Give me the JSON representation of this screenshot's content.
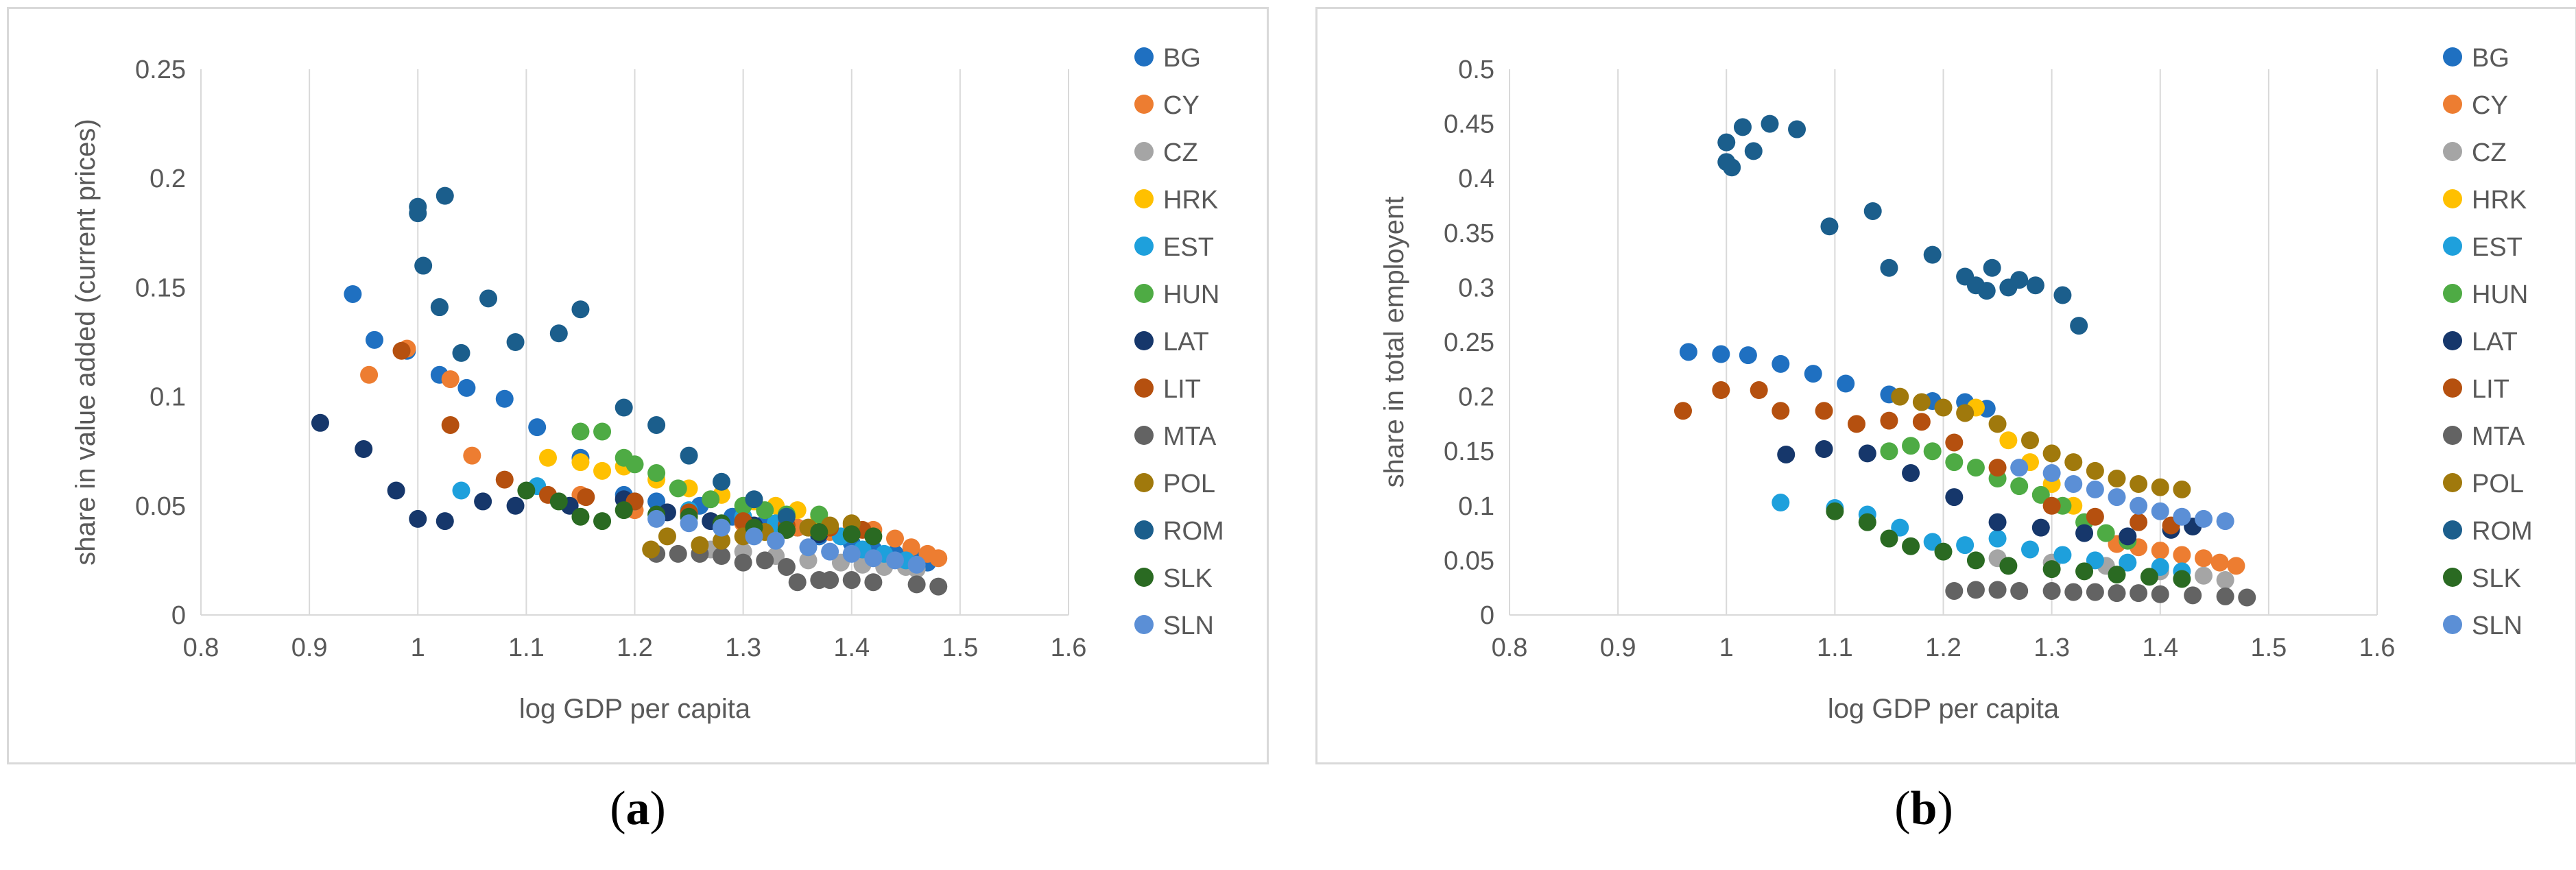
{
  "captions": {
    "a_open": "(",
    "a_letter": "a",
    "a_close": ")",
    "b_open": "(",
    "b_letter": "b",
    "b_close": ")"
  },
  "legend": [
    {
      "name": "BG",
      "color": "#1f70c1"
    },
    {
      "name": "CY",
      "color": "#ed7d31"
    },
    {
      "name": "CZ",
      "color": "#a5a5a5"
    },
    {
      "name": "HRK",
      "color": "#ffc000"
    },
    {
      "name": "EST",
      "color": "#1ea0dc"
    },
    {
      "name": "HUN",
      "color": "#4eab44"
    },
    {
      "name": "LAT",
      "color": "#16376b"
    },
    {
      "name": "LIT",
      "color": "#b5500f"
    },
    {
      "name": "MTA",
      "color": "#636363"
    },
    {
      "name": "POL",
      "color": "#a0790c"
    },
    {
      "name": "ROM",
      "color": "#1b5e8c"
    },
    {
      "name": "SLK",
      "color": "#2a6a22"
    },
    {
      "name": "SLN",
      "color": "#5b8fd6"
    }
  ],
  "chart_data": [
    {
      "id": "a",
      "type": "scatter",
      "xlabel": "log GDP per capita",
      "ylabel": "share in value added (current prices)",
      "xlim": [
        0.8,
        1.6
      ],
      "ylim": [
        0,
        0.25
      ],
      "xticks": [
        "0.8",
        "0.9",
        "1",
        "1.1",
        "1.2",
        "1.3",
        "1.4",
        "1.5",
        "1.6"
      ],
      "yticks": [
        "0",
        "0.05",
        "0.1",
        "0.15",
        "0.2",
        "0.25"
      ],
      "grid": "vertical",
      "legend_position": "right",
      "series": [
        {
          "name": "BG",
          "x": [
            0.94,
            0.96,
            0.99,
            1.02,
            1.045,
            1.08,
            1.11,
            1.15,
            1.19,
            1.22,
            1.26,
            1.29,
            1.32,
            1.35,
            1.37,
            1.4,
            1.42,
            1.44,
            1.46,
            1.47
          ],
          "y": [
            0.147,
            0.126,
            0.121,
            0.11,
            0.104,
            0.099,
            0.086,
            0.072,
            0.055,
            0.052,
            0.05,
            0.045,
            0.042,
            0.04,
            0.036,
            0.033,
            0.03,
            0.028,
            0.026,
            0.024
          ]
        },
        {
          "name": "CY",
          "x": [
            0.955,
            0.99,
            1.03,
            1.05,
            1.15,
            1.2,
            1.25,
            1.3,
            1.35,
            1.38,
            1.4,
            1.42,
            1.44,
            1.455,
            1.47,
            1.48
          ],
          "y": [
            0.11,
            0.122,
            0.108,
            0.073,
            0.055,
            0.048,
            0.046,
            0.042,
            0.04,
            0.038,
            0.041,
            0.039,
            0.035,
            0.031,
            0.028,
            0.026
          ]
        },
        {
          "name": "CZ",
          "x": [
            1.27,
            1.3,
            1.33,
            1.36,
            1.39,
            1.41,
            1.43,
            1.45,
            1.46
          ],
          "y": [
            0.03,
            0.029,
            0.027,
            0.025,
            0.024,
            0.023,
            0.022,
            0.022,
            0.021
          ]
        },
        {
          "name": "HRK",
          "x": [
            1.12,
            1.15,
            1.17,
            1.19,
            1.22,
            1.25,
            1.28,
            1.31,
            1.33,
            1.35,
            1.37
          ],
          "y": [
            0.072,
            0.07,
            0.066,
            0.068,
            0.062,
            0.058,
            0.055,
            0.052,
            0.05,
            0.048,
            0.045
          ]
        },
        {
          "name": "EST",
          "x": [
            1.04,
            1.11,
            1.2,
            1.25,
            1.3,
            1.33,
            1.36,
            1.39,
            1.41,
            1.43,
            1.45
          ],
          "y": [
            0.057,
            0.059,
            0.052,
            0.048,
            0.045,
            0.042,
            0.04,
            0.036,
            0.03,
            0.028,
            0.025
          ]
        },
        {
          "name": "HUN",
          "x": [
            1.15,
            1.17,
            1.19,
            1.2,
            1.22,
            1.24,
            1.27,
            1.3,
            1.32,
            1.34,
            1.37
          ],
          "y": [
            0.084,
            0.084,
            0.072,
            0.069,
            0.065,
            0.058,
            0.053,
            0.05,
            0.048,
            0.046,
            0.046
          ]
        },
        {
          "name": "LAT",
          "x": [
            0.91,
            0.95,
            0.98,
            1.0,
            1.025,
            1.06,
            1.09,
            1.14,
            1.19,
            1.23,
            1.27,
            1.31,
            1.34,
            1.37
          ],
          "y": [
            0.088,
            0.076,
            0.057,
            0.044,
            0.043,
            0.052,
            0.05,
            0.05,
            0.053,
            0.047,
            0.043,
            0.041,
            0.039,
            0.037
          ]
        },
        {
          "name": "LIT",
          "x": [
            0.985,
            1.03,
            1.08,
            1.12,
            1.155,
            1.2,
            1.25,
            1.3,
            1.34,
            1.38,
            1.41
          ],
          "y": [
            0.121,
            0.087,
            0.062,
            0.055,
            0.054,
            0.052,
            0.047,
            0.043,
            0.041,
            0.04,
            0.039
          ]
        },
        {
          "name": "MTA",
          "x": [
            1.22,
            1.24,
            1.26,
            1.28,
            1.3,
            1.32,
            1.34,
            1.35,
            1.37,
            1.38,
            1.4,
            1.42,
            1.46,
            1.48
          ],
          "y": [
            0.028,
            0.028,
            0.028,
            0.027,
            0.024,
            0.025,
            0.022,
            0.015,
            0.016,
            0.016,
            0.016,
            0.015,
            0.014,
            0.013
          ]
        },
        {
          "name": "POL",
          "x": [
            1.215,
            1.23,
            1.26,
            1.28,
            1.3,
            1.32,
            1.34,
            1.36,
            1.38,
            1.4
          ],
          "y": [
            0.03,
            0.036,
            0.032,
            0.034,
            0.036,
            0.038,
            0.039,
            0.04,
            0.041,
            0.042
          ]
        },
        {
          "name": "ROM",
          "x": [
            1.0,
            1.0,
            1.005,
            1.02,
            1.025,
            1.02,
            1.04,
            1.065,
            1.09,
            1.13,
            1.15,
            1.19,
            1.22,
            1.25,
            1.28,
            1.31,
            1.34
          ],
          "y": [
            0.187,
            0.184,
            0.16,
            0.141,
            0.192,
            0.141,
            0.12,
            0.145,
            0.125,
            0.129,
            0.14,
            0.095,
            0.087,
            0.073,
            0.061,
            0.053,
            0.045
          ]
        },
        {
          "name": "SLK",
          "x": [
            1.1,
            1.13,
            1.15,
            1.17,
            1.19,
            1.22,
            1.25,
            1.28,
            1.31,
            1.34,
            1.37,
            1.4,
            1.42
          ],
          "y": [
            0.057,
            0.052,
            0.045,
            0.043,
            0.048,
            0.046,
            0.045,
            0.042,
            0.04,
            0.039,
            0.038,
            0.037,
            0.036
          ]
        },
        {
          "name": "SLN",
          "x": [
            1.22,
            1.25,
            1.28,
            1.31,
            1.33,
            1.36,
            1.38,
            1.4,
            1.42,
            1.44,
            1.46
          ],
          "y": [
            0.044,
            0.042,
            0.04,
            0.036,
            0.034,
            0.031,
            0.029,
            0.028,
            0.026,
            0.025,
            0.023
          ]
        }
      ]
    },
    {
      "id": "b",
      "type": "scatter",
      "xlabel": "log GDP per capita",
      "ylabel": "share in total employent",
      "xlim": [
        0.8,
        1.6
      ],
      "ylim": [
        0,
        0.5
      ],
      "xticks": [
        "0.8",
        "0.9",
        "1",
        "1.1",
        "1.2",
        "1.3",
        "1.4",
        "1.5",
        "1.6"
      ],
      "yticks": [
        "0",
        "0.05",
        "0.1",
        "0.15",
        "0.2",
        "0.25",
        "0.3",
        "0.35",
        "0.4",
        "0.45",
        "0.5"
      ],
      "grid": "vertical",
      "legend_position": "right",
      "series": [
        {
          "name": "BG",
          "x": [
            0.965,
            0.995,
            1.02,
            1.05,
            1.08,
            1.11,
            1.15,
            1.19,
            1.22,
            1.24
          ],
          "y": [
            0.241,
            0.239,
            0.238,
            0.23,
            0.221,
            0.212,
            0.202,
            0.196,
            0.195,
            0.189
          ]
        },
        {
          "name": "CY",
          "x": [
            1.36,
            1.38,
            1.4,
            1.42,
            1.44,
            1.455,
            1.47
          ],
          "y": [
            0.065,
            0.062,
            0.059,
            0.055,
            0.052,
            0.048,
            0.045
          ]
        },
        {
          "name": "CZ",
          "x": [
            1.25,
            1.3,
            1.35,
            1.4,
            1.44,
            1.46
          ],
          "y": [
            0.052,
            0.048,
            0.045,
            0.04,
            0.036,
            0.032
          ]
        },
        {
          "name": "HRK",
          "x": [
            1.23,
            1.26,
            1.28,
            1.3,
            1.32
          ],
          "y": [
            0.19,
            0.16,
            0.14,
            0.12,
            0.1
          ]
        },
        {
          "name": "EST",
          "x": [
            1.05,
            1.1,
            1.13,
            1.16,
            1.19,
            1.22,
            1.25,
            1.28,
            1.31,
            1.34,
            1.37,
            1.4,
            1.42
          ],
          "y": [
            0.103,
            0.098,
            0.092,
            0.08,
            0.067,
            0.064,
            0.07,
            0.06,
            0.055,
            0.05,
            0.048,
            0.044,
            0.04
          ]
        },
        {
          "name": "HUN",
          "x": [
            1.15,
            1.17,
            1.19,
            1.21,
            1.23,
            1.25,
            1.27,
            1.29,
            1.31,
            1.33,
            1.35,
            1.37
          ],
          "y": [
            0.15,
            0.155,
            0.15,
            0.14,
            0.135,
            0.125,
            0.118,
            0.11,
            0.1,
            0.085,
            0.075,
            0.068
          ]
        },
        {
          "name": "LAT",
          "x": [
            1.055,
            1.09,
            1.13,
            1.17,
            1.21,
            1.25,
            1.29,
            1.33,
            1.37,
            1.41,
            1.43
          ],
          "y": [
            0.147,
            0.152,
            0.148,
            0.13,
            0.108,
            0.085,
            0.08,
            0.075,
            0.072,
            0.078,
            0.081
          ]
        },
        {
          "name": "LIT",
          "x": [
            0.96,
            0.995,
            1.03,
            1.05,
            1.09,
            1.12,
            1.15,
            1.18,
            1.21,
            1.25,
            1.3,
            1.34,
            1.38,
            1.41
          ],
          "y": [
            0.187,
            0.206,
            0.206,
            0.187,
            0.187,
            0.175,
            0.178,
            0.177,
            0.158,
            0.135,
            0.1,
            0.09,
            0.085,
            0.082
          ]
        },
        {
          "name": "MTA",
          "x": [
            1.21,
            1.23,
            1.25,
            1.27,
            1.3,
            1.32,
            1.34,
            1.36,
            1.38,
            1.4,
            1.43,
            1.46,
            1.48
          ],
          "y": [
            0.022,
            0.023,
            0.023,
            0.022,
            0.022,
            0.021,
            0.021,
            0.02,
            0.02,
            0.019,
            0.018,
            0.017,
            0.016
          ]
        },
        {
          "name": "POL",
          "x": [
            1.16,
            1.18,
            1.2,
            1.22,
            1.25,
            1.28,
            1.3,
            1.32,
            1.34,
            1.36,
            1.38,
            1.4,
            1.42
          ],
          "y": [
            0.2,
            0.195,
            0.19,
            0.185,
            0.175,
            0.16,
            0.148,
            0.14,
            0.132,
            0.125,
            0.12,
            0.117,
            0.115
          ]
        },
        {
          "name": "ROM",
          "x": [
            1.0,
            1.0,
            1.005,
            1.015,
            1.025,
            1.04,
            1.065,
            1.095,
            1.135,
            1.15,
            1.19,
            1.22,
            1.23,
            1.24,
            1.245,
            1.26,
            1.27,
            1.285,
            1.31,
            1.325
          ],
          "y": [
            0.433,
            0.415,
            0.41,
            0.447,
            0.425,
            0.45,
            0.445,
            0.356,
            0.37,
            0.318,
            0.33,
            0.31,
            0.302,
            0.297,
            0.318,
            0.3,
            0.307,
            0.302,
            0.293,
            0.265
          ]
        },
        {
          "name": "SLK",
          "x": [
            1.1,
            1.13,
            1.15,
            1.17,
            1.2,
            1.23,
            1.26,
            1.3,
            1.33,
            1.36,
            1.39,
            1.42
          ],
          "y": [
            0.095,
            0.085,
            0.07,
            0.063,
            0.058,
            0.05,
            0.045,
            0.042,
            0.04,
            0.037,
            0.035,
            0.033
          ]
        },
        {
          "name": "SLN",
          "x": [
            1.27,
            1.3,
            1.32,
            1.34,
            1.36,
            1.38,
            1.4,
            1.42,
            1.44,
            1.46
          ],
          "y": [
            0.135,
            0.13,
            0.12,
            0.115,
            0.108,
            0.1,
            0.095,
            0.09,
            0.088,
            0.086
          ]
        }
      ]
    }
  ]
}
